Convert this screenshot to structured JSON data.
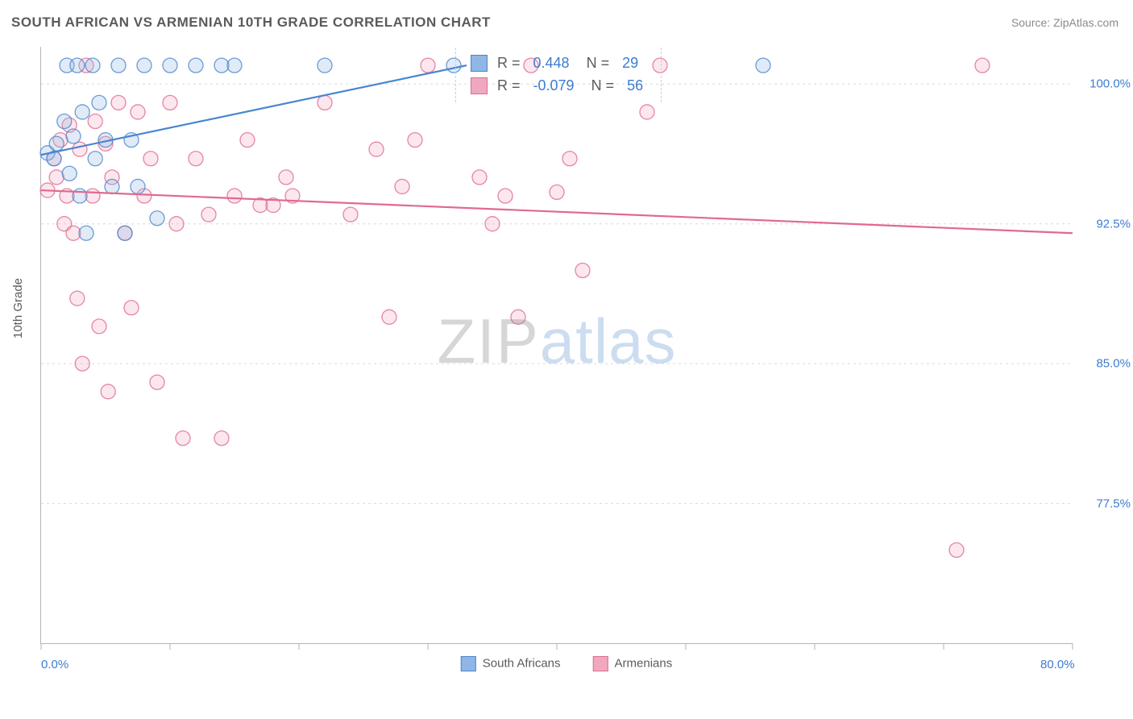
{
  "title": "SOUTH AFRICAN VS ARMENIAN 10TH GRADE CORRELATION CHART",
  "source": "Source: ZipAtlas.com",
  "watermark": {
    "left": "ZIP",
    "right": "atlas"
  },
  "chart": {
    "type": "scatter",
    "yaxis_label": "10th Grade",
    "background_color": "#ffffff",
    "plot_border_color": "#b5b5b5",
    "grid_color": "#d9d9d9",
    "grid_dash": "3,4",
    "axis_num_color": "#3d7ccf",
    "text_color": "#5b5b5b",
    "font_size_title": 17,
    "font_size_axis": 15,
    "xlim": [
      0,
      80
    ],
    "ylim": [
      70,
      102
    ],
    "x_ticks_major": [
      0,
      10,
      20,
      30,
      40,
      50,
      60,
      70,
      80
    ],
    "x_tick_labels": {
      "0": "0.0%",
      "80": "80.0%"
    },
    "y_ticks": [
      77.5,
      85.0,
      92.5,
      100.0
    ],
    "y_tick_labels": [
      "77.5%",
      "85.0%",
      "92.5%",
      "100.0%"
    ],
    "marker_radius": 9,
    "marker_opacity_fill": 0.28,
    "marker_stroke_width": 1.3,
    "series": [
      {
        "name": "South Africans",
        "color_stroke": "#4a86d0",
        "color_fill": "#8fb6e4",
        "line_width": 2.2,
        "correlation_R": "0.448",
        "correlation_N": "29",
        "regression": {
          "x1": 0,
          "y1": 96.2,
          "x2": 33,
          "y2": 101.0
        },
        "points": [
          [
            0.5,
            96.3
          ],
          [
            1.0,
            96.0
          ],
          [
            1.2,
            96.8
          ],
          [
            1.8,
            98.0
          ],
          [
            2.0,
            101.0
          ],
          [
            2.2,
            95.2
          ],
          [
            2.5,
            97.2
          ],
          [
            2.8,
            101.0
          ],
          [
            3.0,
            94.0
          ],
          [
            3.2,
            98.5
          ],
          [
            3.5,
            92.0
          ],
          [
            4.0,
            101.0
          ],
          [
            4.2,
            96.0
          ],
          [
            4.5,
            99.0
          ],
          [
            5.0,
            97.0
          ],
          [
            5.5,
            94.5
          ],
          [
            6.0,
            101.0
          ],
          [
            6.5,
            92.0
          ],
          [
            7.0,
            97.0
          ],
          [
            7.5,
            94.5
          ],
          [
            8.0,
            101.0
          ],
          [
            9.0,
            92.8
          ],
          [
            10.0,
            101.0
          ],
          [
            12.0,
            101.0
          ],
          [
            14.0,
            101.0
          ],
          [
            15.0,
            101.0
          ],
          [
            22.0,
            101.0
          ],
          [
            32.0,
            101.0
          ],
          [
            56.0,
            101.0
          ]
        ]
      },
      {
        "name": "Armenians",
        "color_stroke": "#e06a8e",
        "color_fill": "#f0a8bf",
        "line_width": 2.2,
        "correlation_R": "-0.079",
        "correlation_N": "56",
        "regression": {
          "x1": 0,
          "y1": 94.3,
          "x2": 80,
          "y2": 92.0
        },
        "points": [
          [
            0.5,
            94.3
          ],
          [
            1.0,
            96.0
          ],
          [
            1.2,
            95.0
          ],
          [
            1.5,
            97.0
          ],
          [
            1.8,
            92.5
          ],
          [
            2.0,
            94.0
          ],
          [
            2.2,
            97.8
          ],
          [
            2.5,
            92.0
          ],
          [
            2.8,
            88.5
          ],
          [
            3.0,
            96.5
          ],
          [
            3.2,
            85.0
          ],
          [
            3.5,
            101.0
          ],
          [
            4.0,
            94.0
          ],
          [
            4.2,
            98.0
          ],
          [
            4.5,
            87.0
          ],
          [
            5.0,
            96.8
          ],
          [
            5.2,
            83.5
          ],
          [
            5.5,
            95.0
          ],
          [
            6.0,
            99.0
          ],
          [
            6.5,
            92.0
          ],
          [
            7.0,
            88.0
          ],
          [
            7.5,
            98.5
          ],
          [
            8.0,
            94.0
          ],
          [
            8.5,
            96.0
          ],
          [
            9.0,
            84.0
          ],
          [
            10.0,
            99.0
          ],
          [
            10.5,
            92.5
          ],
          [
            11.0,
            81.0
          ],
          [
            12.0,
            96.0
          ],
          [
            13.0,
            93.0
          ],
          [
            14.0,
            81.0
          ],
          [
            15.0,
            94.0
          ],
          [
            16.0,
            97.0
          ],
          [
            17.0,
            93.5
          ],
          [
            18.0,
            93.5
          ],
          [
            19.0,
            95.0
          ],
          [
            19.5,
            94.0
          ],
          [
            22.0,
            99.0
          ],
          [
            24.0,
            93.0
          ],
          [
            26.0,
            96.5
          ],
          [
            27.0,
            87.5
          ],
          [
            28.0,
            94.5
          ],
          [
            29.0,
            97.0
          ],
          [
            30.0,
            101.0
          ],
          [
            34.0,
            95.0
          ],
          [
            35.0,
            92.5
          ],
          [
            36.0,
            94.0
          ],
          [
            37.0,
            87.5
          ],
          [
            38.0,
            101.0
          ],
          [
            40.0,
            94.2
          ],
          [
            41.0,
            96.0
          ],
          [
            42.0,
            90.0
          ],
          [
            47.0,
            98.5
          ],
          [
            48.0,
            101.0
          ],
          [
            71.0,
            75.0
          ],
          [
            73.0,
            101.0
          ]
        ]
      }
    ],
    "legend_bottom": [
      {
        "label": "South Africans",
        "stroke": "#4a86d0",
        "fill": "#8fb6e4"
      },
      {
        "label": "Armenians",
        "stroke": "#e06a8e",
        "fill": "#f0a8bf"
      }
    ]
  }
}
